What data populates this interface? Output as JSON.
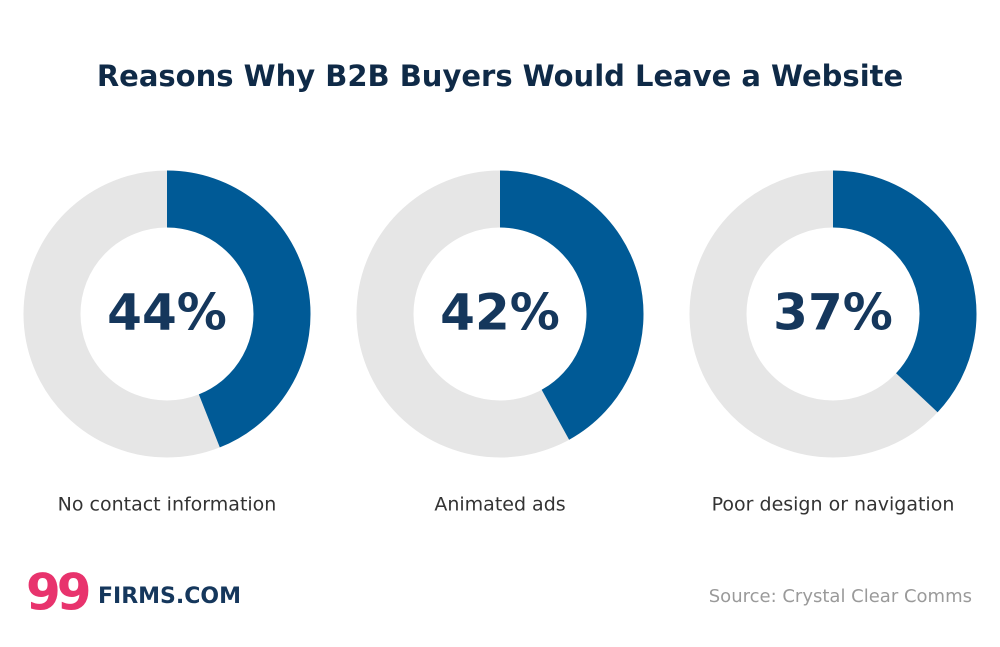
{
  "chart_data": {
    "type": "donut",
    "title": "Reasons Why B2B Buyers Would Leave a Website",
    "categories": [
      "No contact information",
      "Animated ads",
      "Poor design or navigation"
    ],
    "values": [
      44,
      42,
      37
    ],
    "value_labels": [
      "44%",
      "42%",
      "37%"
    ],
    "color": "#005a96",
    "track_color": "#e6e6e6",
    "source": "Source: Crystal Clear Comms"
  },
  "logo": {
    "mark": "99",
    "brand": "FIRMS.COM"
  }
}
